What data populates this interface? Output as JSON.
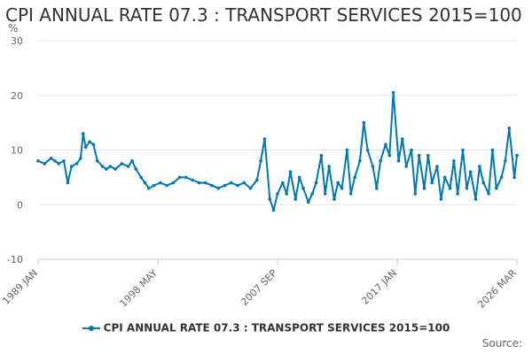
{
  "chart_data": {
    "type": "line",
    "title": "CPI ANNUAL RATE 07.3 : TRANSPORT SERVICES 2015=100",
    "ylabel": "%",
    "xlabel": "",
    "ylim": [
      -10,
      30
    ],
    "yticks": [
      -10,
      0,
      10,
      20,
      30
    ],
    "x_start": "1989 JAN",
    "x_end": "2026 MAR",
    "xtick_labels": [
      "1989 JAN",
      "1998 MAY",
      "2007 SEP",
      "2017 JAN",
      "2026 MAR"
    ],
    "grid": true,
    "legend_position": "bottom",
    "series": [
      {
        "name": "CPI ANNUAL RATE 07.3 : TRANSPORT SERVICES 2015=100",
        "color": "#0077b6",
        "x": [
          1989.0,
          1989.5,
          1990.0,
          1990.3,
          1990.6,
          1991.0,
          1991.3,
          1991.6,
          1992.0,
          1992.3,
          1992.5,
          1992.7,
          1993.0,
          1993.3,
          1993.6,
          1994.0,
          1994.3,
          1994.6,
          1995.0,
          1995.5,
          1996.0,
          1996.3,
          1996.6,
          1997.0,
          1997.3,
          1997.6,
          1998.0,
          1998.5,
          1999.0,
          1999.5,
          2000.0,
          2000.5,
          2001.0,
          2001.5,
          2002.0,
          2002.5,
          2003.0,
          2003.5,
          2004.0,
          2004.5,
          2005.0,
          2005.5,
          2006.0,
          2006.3,
          2006.6,
          2007.0,
          2007.3,
          2007.6,
          2008.0,
          2008.3,
          2008.6,
          2009.0,
          2009.3,
          2009.6,
          2010.0,
          2010.3,
          2010.6,
          2011.0,
          2011.3,
          2011.6,
          2012.0,
          2012.3,
          2012.6,
          2013.0,
          2013.3,
          2013.6,
          2014.0,
          2014.3,
          2014.6,
          2015.0,
          2015.3,
          2015.6,
          2016.0,
          2016.3,
          2016.6,
          2017.0,
          2017.3,
          2017.6,
          2018.0,
          2018.3,
          2018.6,
          2019.0,
          2019.3,
          2019.6,
          2020.0,
          2020.3,
          2020.6,
          2021.0,
          2021.3,
          2021.6,
          2022.0,
          2022.3,
          2022.6,
          2023.0,
          2023.3,
          2023.6,
          2024.0,
          2024.3,
          2024.6,
          2025.0,
          2025.3,
          2025.6,
          2026.0,
          2026.2
        ],
        "values": [
          8,
          7.5,
          8.5,
          8,
          7.5,
          8,
          4,
          7,
          7.5,
          8.5,
          13,
          10.5,
          11.5,
          11,
          8,
          7,
          6.5,
          7,
          6.5,
          7.5,
          7,
          8,
          6.5,
          5,
          4,
          3,
          3.5,
          4,
          3.5,
          4,
          5,
          5,
          4.5,
          4,
          4,
          3.5,
          3,
          3.5,
          4,
          3.5,
          4,
          3,
          4.5,
          8,
          12,
          1,
          -1,
          2,
          4,
          2,
          6,
          1,
          5,
          3,
          0.5,
          2,
          4,
          9,
          2,
          7,
          1,
          4,
          3,
          10,
          2,
          5,
          8,
          15,
          10,
          7,
          3,
          8,
          11,
          9,
          20.5,
          8,
          12,
          7,
          10,
          2,
          9,
          3,
          9,
          4,
          7,
          1,
          5,
          3,
          8,
          2,
          10,
          3,
          6,
          1,
          7,
          4,
          2,
          10,
          3,
          5,
          8,
          14,
          5,
          9
        ]
      }
    ]
  },
  "source_label": "Source:"
}
